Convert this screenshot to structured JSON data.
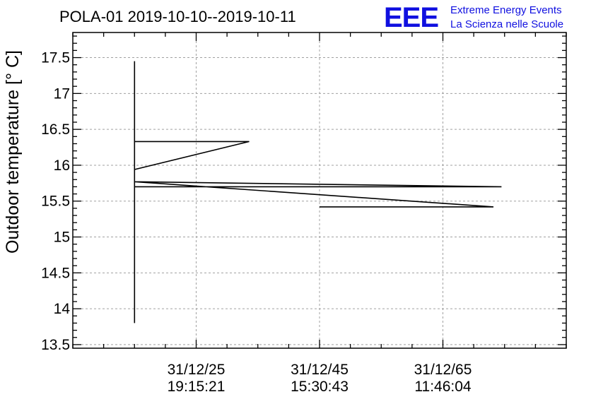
{
  "logo": {
    "mark": "EEE",
    "line1": "Extreme Energy Events",
    "line2": "La Scienza nelle Scuole",
    "color": "#1010e0"
  },
  "chart_data": {
    "type": "line",
    "title": "POLA-01 2019-10-10--2019-10-11",
    "xlabel": "",
    "ylabel": "Outdoor temperature [° C]",
    "ylim": [
      13.45,
      17.85
    ],
    "yticks": [
      13.5,
      14,
      14.5,
      15,
      15.5,
      16,
      16.5,
      17,
      17.5
    ],
    "ytick_labels": [
      "13.5",
      "14",
      "14.5",
      "15",
      "15.5",
      "16",
      "16.5",
      "17",
      "17.5"
    ],
    "xlim": [
      5,
      85
    ],
    "xticks": [
      25,
      45,
      65
    ],
    "xtick_labels": [
      [
        "31/12/25",
        "19:15:21"
      ],
      [
        "31/12/45",
        "15:30:43"
      ],
      [
        "31/12/65",
        "11:46:04"
      ]
    ],
    "grid": true,
    "series": [
      {
        "x": [
          15.0,
          15.0,
          15.0,
          33.6,
          15.0,
          15.0,
          74.5,
          15.0,
          15.0,
          73.2,
          45.0,
          45.0,
          73.2,
          15.0,
          15.0
        ],
        "y": [
          17.45,
          13.8,
          16.33,
          16.33,
          15.94,
          15.77,
          15.7,
          15.7,
          15.77,
          15.42,
          15.42,
          15.42,
          15.42,
          15.77,
          15.7
        ]
      }
    ]
  }
}
